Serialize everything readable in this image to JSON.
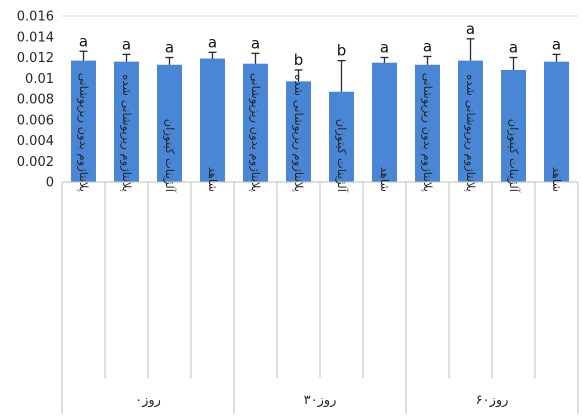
{
  "chart_data": {
    "type": "bar",
    "title": "",
    "xlabel": "",
    "ylabel": "",
    "ylim": [
      0,
      0.016
    ],
    "y_ticks": [
      "0",
      "0.002",
      "0.004",
      "0.006",
      "0.008",
      "0.01",
      "0.012",
      "0.014",
      "0.016"
    ],
    "y_tick_values": [
      0,
      0.002,
      0.004,
      0.006,
      0.008,
      0.01,
      0.012,
      0.014,
      0.016
    ],
    "grid": false,
    "legend": "none",
    "bar_color": "#4a86d6",
    "error_color": "#2a2a2a",
    "categories": [
      "پلانتاژوم بدون ریزپوشانی",
      "پلانتاژوم ریزپوشانی شده",
      "آلژینات کیتوزان",
      "شاهد",
      "پلانتاژوم بدون ریزپوشانی",
      "پلانتاژوم ریزپوشانی شده",
      "آلژینات کیتوزان",
      "شاهد",
      "پلانتاژوم بدون ریزپوشانی",
      "پلانتاژوم ریزپوشانی شده",
      "آلژینات کیتوزان",
      "شاهد"
    ],
    "values": [
      0.0117,
      0.0116,
      0.0113,
      0.0119,
      0.0114,
      0.0097,
      0.0087,
      0.0115,
      0.0113,
      0.0117,
      0.0108,
      0.0116
    ],
    "errors": [
      0.0009,
      0.0007,
      0.0007,
      0.0006,
      0.001,
      0.0011,
      0.003,
      0.0005,
      0.0008,
      0.0021,
      0.0012,
      0.0007
    ],
    "significance": [
      "a",
      "a",
      "a",
      "a",
      "a",
      "b",
      "b",
      "a",
      "a",
      "a",
      "a",
      "a"
    ],
    "groups": [
      {
        "label": "روز۰",
        "start": 0,
        "count": 4
      },
      {
        "label": "روز۳۰",
        "start": 4,
        "count": 4
      },
      {
        "label": "روز۶۰",
        "start": 8,
        "count": 4
      }
    ]
  }
}
